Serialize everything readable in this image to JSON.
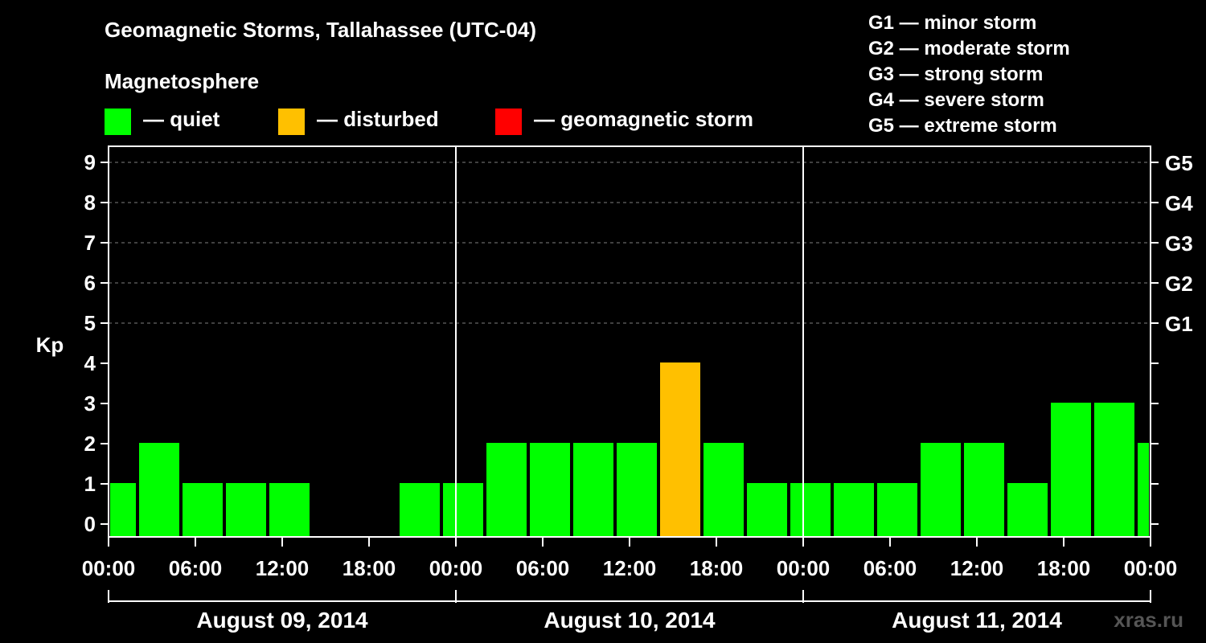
{
  "title": "Geomagnetic Storms, Tallahassee (UTC-04)",
  "legend": {
    "heading": "Magnetosphere",
    "items": [
      {
        "label": "— quiet",
        "color": "#00ff00"
      },
      {
        "label": "— disturbed",
        "color": "#ffc000"
      },
      {
        "label": "— geomagnetic storm",
        "color": "#ff0000"
      }
    ]
  },
  "storm_scale": [
    "G1 — minor storm",
    "G2 — moderate storm",
    "G3 — strong storm",
    "G4 — severe storm",
    "G5 — extreme storm"
  ],
  "watermark": "xras.ru",
  "chart_data": {
    "type": "bar",
    "title": "Geomagnetic Storms, Tallahassee (UTC-04)",
    "ylabel": "Kp",
    "ylim": [
      0,
      9
    ],
    "yticks": [
      0,
      1,
      2,
      3,
      4,
      5,
      6,
      7,
      8,
      9
    ],
    "right_labels": [
      {
        "kp": 5,
        "label": "G1"
      },
      {
        "kp": 6,
        "label": "G2"
      },
      {
        "kp": 7,
        "label": "G3"
      },
      {
        "kp": 8,
        "label": "G4"
      },
      {
        "kp": 9,
        "label": "G5"
      }
    ],
    "x_range_hours": [
      0,
      72
    ],
    "xticks": [
      {
        "hour": 0,
        "label": "00:00"
      },
      {
        "hour": 6,
        "label": "06:00"
      },
      {
        "hour": 12,
        "label": "12:00"
      },
      {
        "hour": 18,
        "label": "18:00"
      },
      {
        "hour": 24,
        "label": "00:00"
      },
      {
        "hour": 30,
        "label": "06:00"
      },
      {
        "hour": 36,
        "label": "12:00"
      },
      {
        "hour": 42,
        "label": "18:00"
      },
      {
        "hour": 48,
        "label": "00:00"
      },
      {
        "hour": 54,
        "label": "06:00"
      },
      {
        "hour": 60,
        "label": "12:00"
      },
      {
        "hour": 66,
        "label": "18:00"
      },
      {
        "hour": 72,
        "label": "00:00"
      }
    ],
    "days": [
      {
        "label": "August 09, 2014",
        "start": 0,
        "end": 24
      },
      {
        "label": "August 10, 2014",
        "start": 24,
        "end": 48
      },
      {
        "label": "August 11, 2014",
        "start": 48,
        "end": 72
      }
    ],
    "bars": [
      {
        "start": 0,
        "end": 2,
        "kp": 1,
        "color": "#00ff00"
      },
      {
        "start": 2,
        "end": 5,
        "kp": 2,
        "color": "#00ff00"
      },
      {
        "start": 5,
        "end": 8,
        "kp": 1,
        "color": "#00ff00"
      },
      {
        "start": 8,
        "end": 11,
        "kp": 1,
        "color": "#00ff00"
      },
      {
        "start": 11,
        "end": 14,
        "kp": 1,
        "color": "#00ff00"
      },
      {
        "start": 14,
        "end": 17,
        "kp": 0,
        "color": "#00ff00"
      },
      {
        "start": 17,
        "end": 20,
        "kp": 0,
        "color": "#00ff00"
      },
      {
        "start": 20,
        "end": 23,
        "kp": 1,
        "color": "#00ff00"
      },
      {
        "start": 23,
        "end": 26,
        "kp": 1,
        "color": "#00ff00"
      },
      {
        "start": 26,
        "end": 29,
        "kp": 2,
        "color": "#00ff00"
      },
      {
        "start": 29,
        "end": 32,
        "kp": 2,
        "color": "#00ff00"
      },
      {
        "start": 32,
        "end": 35,
        "kp": 2,
        "color": "#00ff00"
      },
      {
        "start": 35,
        "end": 38,
        "kp": 2,
        "color": "#00ff00"
      },
      {
        "start": 38,
        "end": 41,
        "kp": 4,
        "color": "#ffc000"
      },
      {
        "start": 41,
        "end": 44,
        "kp": 2,
        "color": "#00ff00"
      },
      {
        "start": 44,
        "end": 47,
        "kp": 1,
        "color": "#00ff00"
      },
      {
        "start": 47,
        "end": 50,
        "kp": 1,
        "color": "#00ff00"
      },
      {
        "start": 50,
        "end": 53,
        "kp": 1,
        "color": "#00ff00"
      },
      {
        "start": 53,
        "end": 56,
        "kp": 1,
        "color": "#00ff00"
      },
      {
        "start": 56,
        "end": 59,
        "kp": 2,
        "color": "#00ff00"
      },
      {
        "start": 59,
        "end": 62,
        "kp": 2,
        "color": "#00ff00"
      },
      {
        "start": 62,
        "end": 65,
        "kp": 1,
        "color": "#00ff00"
      },
      {
        "start": 65,
        "end": 68,
        "kp": 3,
        "color": "#00ff00"
      },
      {
        "start": 68,
        "end": 71,
        "kp": 3,
        "color": "#00ff00"
      },
      {
        "start": 71,
        "end": 72,
        "kp": 2,
        "color": "#00ff00"
      }
    ]
  }
}
